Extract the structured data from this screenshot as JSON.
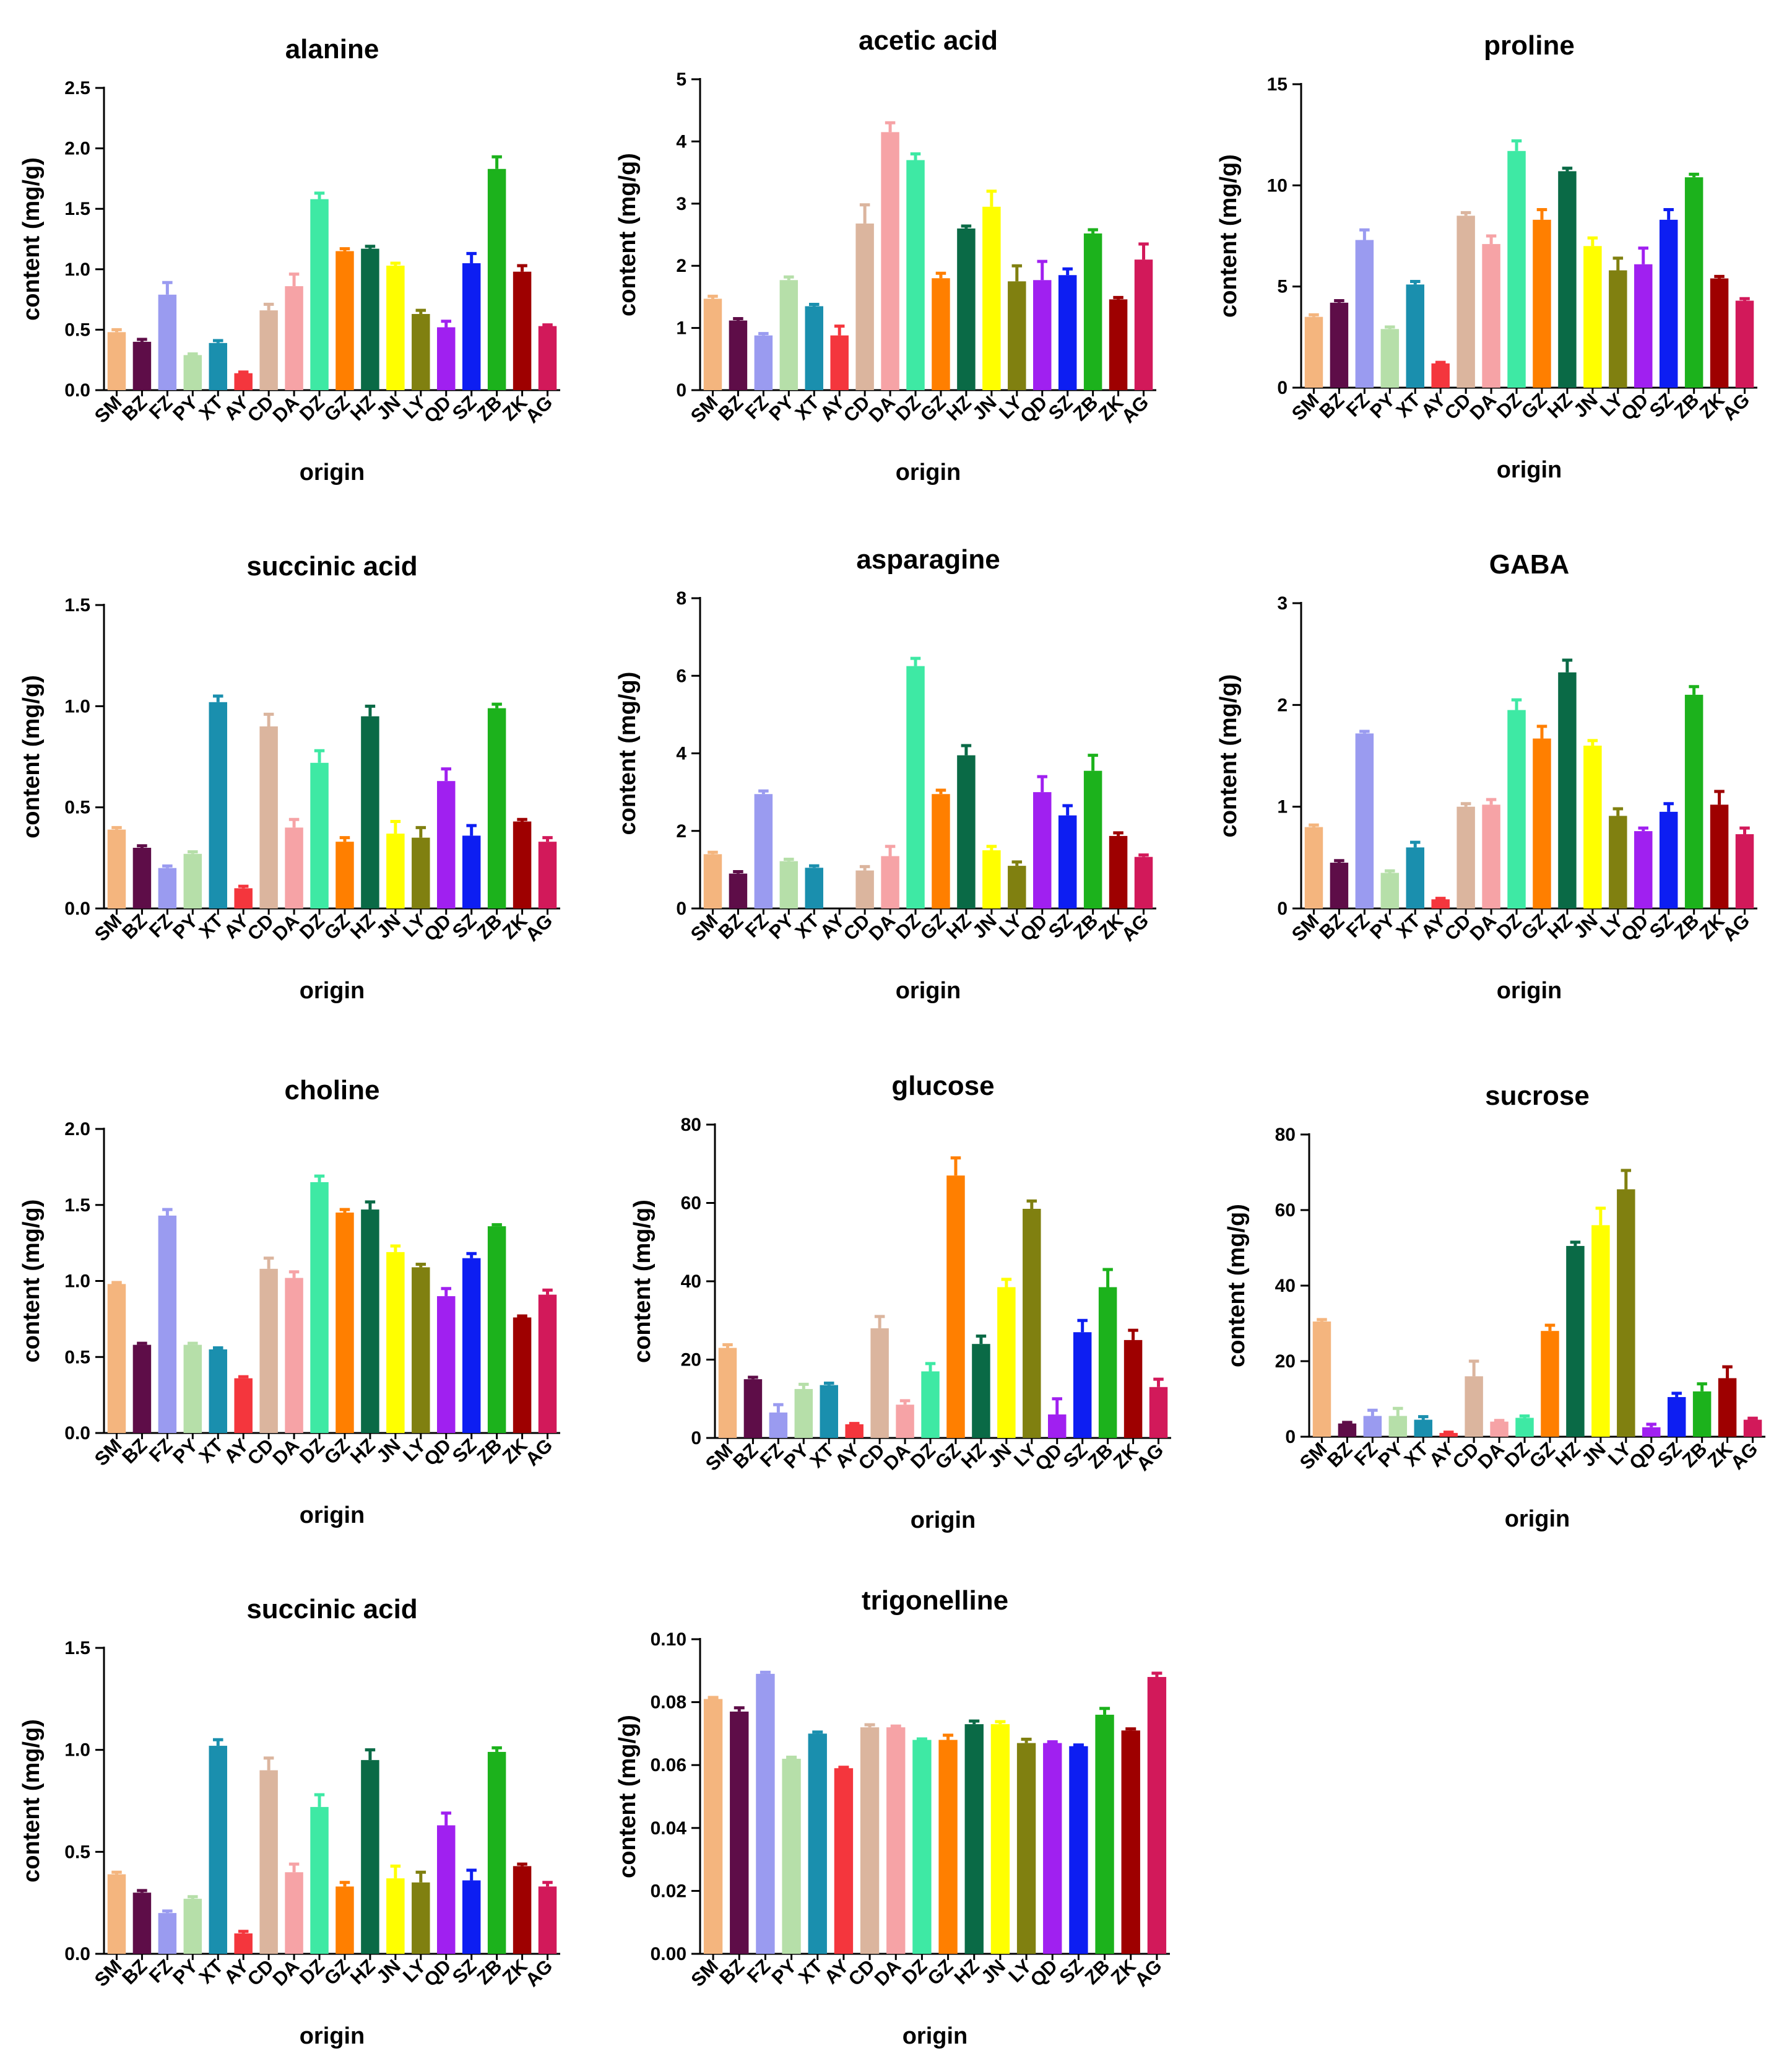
{
  "colors": {
    "SM": "#f4b57e",
    "BZ": "#5e0d48",
    "FZ": "#9a9bf0",
    "PY": "#b6dfa9",
    "XT": "#1a8fae",
    "AY": "#f4363d",
    "CD": "#dbb59e",
    "DA": "#f6a3a6",
    "DZ": "#3ee9a4",
    "GZ": "#ff7f00",
    "HZ": "#0a6a46",
    "JN": "#ffff00",
    "LY": "#808010",
    "QD": "#a020f0",
    "SZ": "#0d1ef2",
    "ZB": "#1cb21c",
    "ZK": "#9e0000",
    "AG": "#d2195a"
  },
  "chart_data": [
    {
      "type": "bar",
      "title": "alanine",
      "xlabel": "origin",
      "ylabel": "content (mg/g)",
      "ylim": [
        0,
        2.5
      ],
      "yticks": [
        "0.0",
        "0.5",
        "1.0",
        "1.5",
        "2.0",
        "2.5"
      ],
      "categories": [
        "SM",
        "BZ",
        "FZ",
        "PY",
        "XT",
        "AY",
        "CD",
        "DA",
        "DZ",
        "GZ",
        "HZ",
        "JN",
        "LY",
        "QD",
        "SZ",
        "ZB",
        "ZK",
        "AG"
      ],
      "values": [
        0.48,
        0.4,
        0.79,
        0.29,
        0.39,
        0.14,
        0.66,
        0.86,
        1.58,
        1.15,
        1.17,
        1.03,
        0.63,
        0.52,
        1.05,
        1.83,
        0.98,
        0.53
      ],
      "errors": [
        0.02,
        0.02,
        0.1,
        0.01,
        0.02,
        0.01,
        0.05,
        0.1,
        0.05,
        0.02,
        0.02,
        0.02,
        0.03,
        0.05,
        0.08,
        0.1,
        0.05,
        0.01
      ]
    },
    {
      "type": "bar",
      "title": "acetic acid",
      "xlabel": "origin",
      "ylabel": "content (mg/g)",
      "ylim": [
        0,
        5
      ],
      "yticks": [
        "0",
        "1",
        "2",
        "3",
        "4",
        "5"
      ],
      "categories": [
        "SM",
        "BZ",
        "FZ",
        "PY",
        "XT",
        "AY",
        "CD",
        "DA",
        "DZ",
        "GZ",
        "HZ",
        "JN",
        "LY",
        "QD",
        "SZ",
        "ZB",
        "ZK",
        "AG"
      ],
      "values": [
        1.47,
        1.12,
        0.88,
        1.77,
        1.35,
        0.88,
        2.68,
        4.15,
        3.7,
        1.8,
        2.6,
        2.95,
        1.75,
        1.77,
        1.85,
        2.52,
        1.46,
        2.1
      ],
      "errors": [
        0.04,
        0.03,
        0.03,
        0.05,
        0.03,
        0.15,
        0.3,
        0.15,
        0.1,
        0.08,
        0.04,
        0.25,
        0.25,
        0.3,
        0.1,
        0.06,
        0.03,
        0.25
      ]
    },
    {
      "type": "bar",
      "title": "proline",
      "xlabel": "origin",
      "ylabel": "content (mg/g)",
      "ylim": [
        0,
        15
      ],
      "yticks": [
        "0",
        "5",
        "10",
        "15"
      ],
      "categories": [
        "SM",
        "BZ",
        "FZ",
        "PY",
        "XT",
        "AY",
        "CD",
        "DA",
        "DZ",
        "GZ",
        "HZ",
        "JN",
        "LY",
        "QD",
        "SZ",
        "ZB",
        "ZK",
        "AG"
      ],
      "values": [
        3.5,
        4.2,
        7.3,
        2.9,
        5.1,
        1.2,
        8.5,
        7.1,
        11.7,
        8.3,
        10.7,
        7.0,
        5.8,
        6.1,
        8.3,
        10.4,
        5.4,
        4.3
      ],
      "errors": [
        0.1,
        0.1,
        0.5,
        0.1,
        0.15,
        0.05,
        0.15,
        0.4,
        0.5,
        0.5,
        0.15,
        0.4,
        0.6,
        0.8,
        0.5,
        0.15,
        0.1,
        0.1
      ]
    },
    {
      "type": "bar",
      "title": "succinic acid",
      "xlabel": "origin",
      "ylabel": "content (mg/g)",
      "ylim": [
        0,
        1.5
      ],
      "yticks": [
        "0.0",
        "0.5",
        "1.0",
        "1.5"
      ],
      "categories": [
        "SM",
        "BZ",
        "FZ",
        "PY",
        "XT",
        "AY",
        "CD",
        "DA",
        "DZ",
        "GZ",
        "HZ",
        "JN",
        "LY",
        "QD",
        "SZ",
        "ZB",
        "ZK",
        "AG"
      ],
      "values": [
        0.39,
        0.3,
        0.2,
        0.27,
        1.02,
        0.1,
        0.9,
        0.4,
        0.72,
        0.33,
        0.95,
        0.37,
        0.35,
        0.63,
        0.36,
        0.99,
        0.43,
        0.33
      ],
      "errors": [
        0.01,
        0.01,
        0.01,
        0.01,
        0.03,
        0.01,
        0.06,
        0.04,
        0.06,
        0.02,
        0.05,
        0.06,
        0.05,
        0.06,
        0.05,
        0.02,
        0.01,
        0.02
      ]
    },
    {
      "type": "bar",
      "title": "asparagine",
      "xlabel": "origin",
      "ylabel": "content (mg/g)",
      "ylim": [
        0,
        8
      ],
      "yticks": [
        "0",
        "2",
        "4",
        "6",
        "8"
      ],
      "categories": [
        "SM",
        "BZ",
        "FZ",
        "PY",
        "XT",
        "AY",
        "CD",
        "DA",
        "DZ",
        "GZ",
        "HZ",
        "JN",
        "LY",
        "QD",
        "SZ",
        "ZB",
        "ZK",
        "AG"
      ],
      "values": [
        1.4,
        0.9,
        2.95,
        1.22,
        1.05,
        0.0,
        0.98,
        1.35,
        6.25,
        2.95,
        3.95,
        1.5,
        1.1,
        3.0,
        2.4,
        3.55,
        1.87,
        1.33
      ],
      "errors": [
        0.05,
        0.05,
        0.08,
        0.05,
        0.05,
        0.0,
        0.1,
        0.25,
        0.2,
        0.1,
        0.25,
        0.1,
        0.1,
        0.4,
        0.25,
        0.4,
        0.08,
        0.05
      ]
    },
    {
      "type": "bar",
      "title": "GABA",
      "xlabel": "origin",
      "ylabel": "content (mg/g)",
      "ylim": [
        0,
        3
      ],
      "yticks": [
        "0",
        "1",
        "2",
        "3"
      ],
      "categories": [
        "SM",
        "BZ",
        "FZ",
        "PY",
        "XT",
        "AY",
        "CD",
        "DA",
        "DZ",
        "GZ",
        "HZ",
        "JN",
        "LY",
        "QD",
        "SZ",
        "ZB",
        "ZK",
        "AG"
      ],
      "values": [
        0.8,
        0.45,
        1.72,
        0.35,
        0.6,
        0.09,
        1.0,
        1.02,
        1.95,
        1.67,
        2.32,
        1.6,
        0.91,
        0.76,
        0.95,
        2.1,
        1.02,
        0.73
      ],
      "errors": [
        0.02,
        0.02,
        0.02,
        0.02,
        0.05,
        0.01,
        0.03,
        0.05,
        0.1,
        0.12,
        0.12,
        0.05,
        0.07,
        0.03,
        0.08,
        0.08,
        0.13,
        0.06
      ]
    },
    {
      "type": "bar",
      "title": "choline",
      "xlabel": "origin",
      "ylabel": "content (mg/g)",
      "ylim": [
        0,
        2.0
      ],
      "yticks": [
        "0.0",
        "0.5",
        "1.0",
        "1.5",
        "2.0"
      ],
      "categories": [
        "SM",
        "BZ",
        "FZ",
        "PY",
        "XT",
        "AY",
        "CD",
        "DA",
        "DZ",
        "GZ",
        "HZ",
        "JN",
        "LY",
        "QD",
        "SZ",
        "ZB",
        "ZK",
        "AG"
      ],
      "values": [
        0.98,
        0.58,
        1.43,
        0.58,
        0.55,
        0.36,
        1.08,
        1.02,
        1.65,
        1.45,
        1.47,
        1.19,
        1.09,
        0.9,
        1.15,
        1.36,
        0.76,
        0.91
      ],
      "errors": [
        0.01,
        0.01,
        0.04,
        0.01,
        0.01,
        0.01,
        0.07,
        0.04,
        0.04,
        0.02,
        0.05,
        0.04,
        0.02,
        0.05,
        0.03,
        0.01,
        0.01,
        0.03
      ]
    },
    {
      "type": "bar",
      "title": "glucose",
      "xlabel": "origin",
      "ylabel": "content (mg/g)",
      "ylim": [
        0,
        80
      ],
      "yticks": [
        "0",
        "20",
        "40",
        "60",
        "80"
      ],
      "categories": [
        "SM",
        "BZ",
        "FZ",
        "PY",
        "XT",
        "AY",
        "CD",
        "DA",
        "DZ",
        "GZ",
        "HZ",
        "JN",
        "LY",
        "QD",
        "SZ",
        "ZB",
        "ZK",
        "AG"
      ],
      "values": [
        23,
        15,
        6.5,
        12.5,
        13.5,
        3.5,
        28,
        8.5,
        17,
        67,
        24,
        38.5,
        58.5,
        6,
        27,
        38.5,
        25,
        13
      ],
      "errors": [
        0.8,
        0.5,
        2.0,
        1.2,
        0.5,
        0.2,
        3.0,
        1.0,
        2.0,
        4.5,
        2.0,
        2.0,
        2.0,
        4.0,
        3.0,
        4.5,
        2.5,
        2.0
      ]
    },
    {
      "type": "bar",
      "title": "sucrose",
      "xlabel": "origin",
      "ylabel": "content (mg/g)",
      "ylim": [
        0,
        80
      ],
      "yticks": [
        "0",
        "20",
        "40",
        "60",
        "80"
      ],
      "categories": [
        "SM",
        "BZ",
        "FZ",
        "PY",
        "XT",
        "AY",
        "CD",
        "DA",
        "DZ",
        "GZ",
        "HZ",
        "JN",
        "LY",
        "QD",
        "SZ",
        "ZB",
        "ZK",
        "AG"
      ],
      "values": [
        30.5,
        3.5,
        5.5,
        5.5,
        4.5,
        1,
        16,
        4,
        5,
        28,
        50.5,
        56,
        65.5,
        2.5,
        10.5,
        12,
        15.5,
        4.5
      ],
      "errors": [
        0.5,
        0.3,
        1.5,
        2.0,
        0.8,
        0.2,
        4.0,
        0.3,
        0.5,
        1.5,
        1.0,
        4.5,
        5.0,
        0.8,
        1.0,
        2.0,
        3.0,
        0.4
      ]
    },
    {
      "type": "bar",
      "title": "succinic acid",
      "xlabel": "origin",
      "ylabel": "content (mg/g)",
      "ylim": [
        0,
        1.5
      ],
      "yticks": [
        "0.0",
        "0.5",
        "1.0",
        "1.5"
      ],
      "categories": [
        "SM",
        "BZ",
        "FZ",
        "PY",
        "XT",
        "AY",
        "CD",
        "DA",
        "DZ",
        "GZ",
        "HZ",
        "JN",
        "LY",
        "QD",
        "SZ",
        "ZB",
        "ZK",
        "AG"
      ],
      "values": [
        0.39,
        0.3,
        0.2,
        0.27,
        1.02,
        0.1,
        0.9,
        0.4,
        0.72,
        0.33,
        0.95,
        0.37,
        0.35,
        0.63,
        0.36,
        0.99,
        0.43,
        0.33
      ],
      "errors": [
        0.01,
        0.01,
        0.01,
        0.01,
        0.03,
        0.01,
        0.06,
        0.04,
        0.06,
        0.02,
        0.05,
        0.06,
        0.05,
        0.06,
        0.05,
        0.02,
        0.01,
        0.02
      ]
    },
    {
      "type": "bar",
      "title": "trigonelline",
      "xlabel": "origin",
      "ylabel": "content (mg/g)",
      "ylim": [
        0,
        0.1
      ],
      "yticks": [
        "0.00",
        "0.02",
        "0.04",
        "0.06",
        "0.08",
        "0.10"
      ],
      "categories": [
        "SM",
        "BZ",
        "FZ",
        "PY",
        "XT",
        "AY",
        "CD",
        "DA",
        "DZ",
        "GZ",
        "HZ",
        "JN",
        "LY",
        "QD",
        "SZ",
        "ZB",
        "ZK",
        "AG"
      ],
      "values": [
        0.081,
        0.077,
        0.089,
        0.062,
        0.07,
        0.059,
        0.072,
        0.072,
        0.068,
        0.068,
        0.073,
        0.073,
        0.067,
        0.067,
        0.066,
        0.076,
        0.071,
        0.088
      ],
      "errors": [
        0.0005,
        0.0012,
        0.0005,
        0.0005,
        0.0005,
        0.0003,
        0.0008,
        0.0004,
        0.0003,
        0.0015,
        0.001,
        0.0008,
        0.0012,
        0.0004,
        0.0004,
        0.002,
        0.0005,
        0.0012
      ]
    }
  ]
}
